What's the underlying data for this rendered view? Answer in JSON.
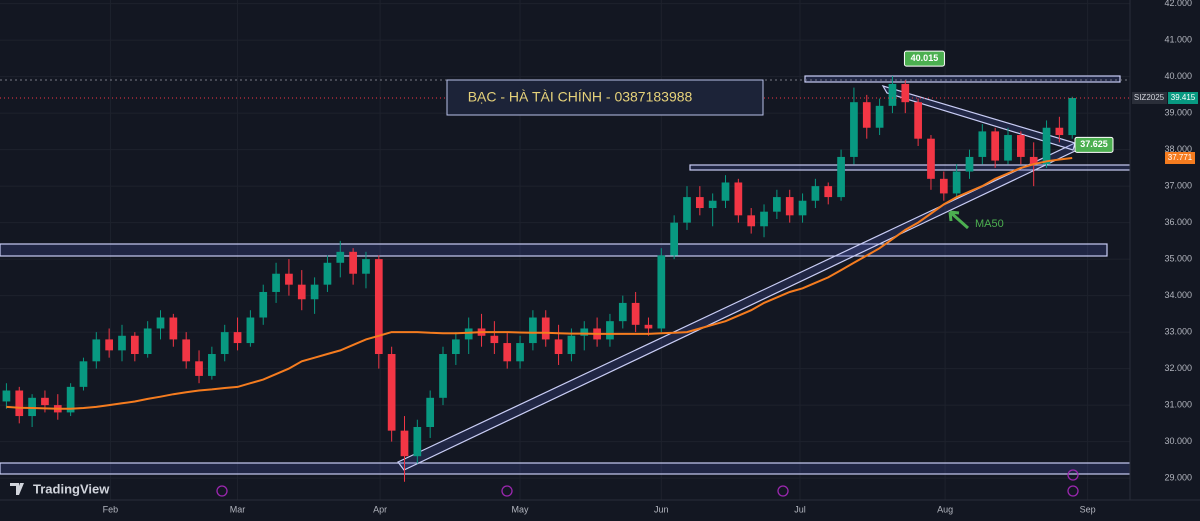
{
  "chart_data": {
    "type": "candlestick",
    "watermark_text": "BẠC - HÀ TÀI CHÍNH - 0387183988",
    "logo_text": "TradingView",
    "xlim": [
      -0.5,
      87.5
    ],
    "xticks": [
      {
        "value": 8.1,
        "label": "Feb"
      },
      {
        "value": 18,
        "label": "Mar"
      },
      {
        "value": 29.1,
        "label": "Apr"
      },
      {
        "value": 40,
        "label": "May"
      },
      {
        "value": 51,
        "label": "Jun"
      },
      {
        "value": 61.8,
        "label": "Jul"
      },
      {
        "value": 73.1,
        "label": "Aug"
      },
      {
        "value": 84.2,
        "label": "Sep"
      }
    ],
    "ylim": [
      28.4,
      42.1
    ],
    "yticks": [
      {
        "value": 29,
        "label": "29.000"
      },
      {
        "value": 30,
        "label": "30.000"
      },
      {
        "value": 31,
        "label": "31.000"
      },
      {
        "value": 32,
        "label": "32.000"
      },
      {
        "value": 33,
        "label": "33.000"
      },
      {
        "value": 34,
        "label": "34.000"
      },
      {
        "value": 35,
        "label": "35.000"
      },
      {
        "value": 36,
        "label": "36.000"
      },
      {
        "value": 37,
        "label": "37.000"
      },
      {
        "value": 38,
        "label": "38.000"
      },
      {
        "value": 39,
        "label": "39.000"
      },
      {
        "value": 40,
        "label": "40.000"
      },
      {
        "value": 41,
        "label": "41.000"
      },
      {
        "value": 42,
        "label": "42.000"
      }
    ],
    "grid": true,
    "annotations": [
      37.625
    ],
    "series": [
      {
        "name": "SIZ2025",
        "up_color": "#089981",
        "down_color": "#f23645",
        "open": [
          31.1,
          31.4,
          30.7,
          31.2,
          31.0,
          30.8,
          31.5,
          32.2,
          32.8,
          32.5,
          32.9,
          32.4,
          33.1,
          33.4,
          32.8,
          32.2,
          31.8,
          32.4,
          33.0,
          32.7,
          33.4,
          34.1,
          34.6,
          34.3,
          33.9,
          34.3,
          34.9,
          35.2,
          34.6,
          35.0,
          32.4,
          30.3,
          29.6,
          30.4,
          31.2,
          32.4,
          32.8,
          33.1,
          32.9,
          32.7,
          32.2,
          32.7,
          33.4,
          32.8,
          32.4,
          32.9,
          33.1,
          32.8,
          33.3,
          33.8,
          33.2,
          33.1,
          35.1,
          36.0,
          36.7,
          36.4,
          36.6,
          37.1,
          36.2,
          35.9,
          36.3,
          36.7,
          36.2,
          36.6,
          37.0,
          36.7,
          37.8,
          39.3,
          38.6,
          39.2,
          39.8,
          39.3,
          38.3,
          37.2,
          36.8,
          37.4,
          37.8,
          38.5,
          37.7,
          38.4,
          37.8,
          37.6,
          38.6,
          38.4
        ],
        "high": [
          31.6,
          31.5,
          31.3,
          31.4,
          31.3,
          31.6,
          32.3,
          33.0,
          33.1,
          33.2,
          33.0,
          33.3,
          33.6,
          33.5,
          33.0,
          32.5,
          32.6,
          33.2,
          33.4,
          33.6,
          34.3,
          34.9,
          35.0,
          34.7,
          34.5,
          35.1,
          35.5,
          35.3,
          35.2,
          35.1,
          32.6,
          30.7,
          30.6,
          31.4,
          32.6,
          33.0,
          33.4,
          33.5,
          33.3,
          33.0,
          32.9,
          33.6,
          33.6,
          33.2,
          33.1,
          33.3,
          33.4,
          33.5,
          34.0,
          34.1,
          33.4,
          35.3,
          36.2,
          37.0,
          37.0,
          36.8,
          37.3,
          37.2,
          36.4,
          36.5,
          36.9,
          36.9,
          36.8,
          37.2,
          37.1,
          38.0,
          39.7,
          39.5,
          39.4,
          40.015,
          39.9,
          39.4,
          38.4,
          37.4,
          37.6,
          38.0,
          38.7,
          38.6,
          38.6,
          38.5,
          38.2,
          38.8,
          38.9,
          39.45
        ],
        "low": [
          30.9,
          30.5,
          30.4,
          30.8,
          30.6,
          30.7,
          31.4,
          32.0,
          32.3,
          32.2,
          32.2,
          32.3,
          32.8,
          32.6,
          32.0,
          31.6,
          31.7,
          32.2,
          32.5,
          32.6,
          33.2,
          33.8,
          34.0,
          33.6,
          33.5,
          34.1,
          34.5,
          34.3,
          34.2,
          32.0,
          30.0,
          28.9,
          29.4,
          30.1,
          31.0,
          32.1,
          32.4,
          32.6,
          32.4,
          32.0,
          32.0,
          32.5,
          32.6,
          32.1,
          32.2,
          32.5,
          32.6,
          32.6,
          33.1,
          33.0,
          32.9,
          33.0,
          35.0,
          35.8,
          36.2,
          35.9,
          36.4,
          36.0,
          35.7,
          35.6,
          36.1,
          36.0,
          36.0,
          36.4,
          36.5,
          36.6,
          37.6,
          38.3,
          38.4,
          39.0,
          39.0,
          38.1,
          36.9,
          36.6,
          36.7,
          37.2,
          37.6,
          37.5,
          37.6,
          37.6,
          37.0,
          37.5,
          38.2,
          38.3
        ],
        "close": [
          31.4,
          30.7,
          31.2,
          31.0,
          30.8,
          31.5,
          32.2,
          32.8,
          32.5,
          32.9,
          32.4,
          33.1,
          33.4,
          32.8,
          32.2,
          31.8,
          32.4,
          33.0,
          32.7,
          33.4,
          34.1,
          34.6,
          34.3,
          33.9,
          34.3,
          34.9,
          35.2,
          34.6,
          35.0,
          32.4,
          30.3,
          29.6,
          30.4,
          31.2,
          32.4,
          32.8,
          33.1,
          32.9,
          32.7,
          32.2,
          32.7,
          33.4,
          32.8,
          32.4,
          32.9,
          33.1,
          32.8,
          33.3,
          33.8,
          33.2,
          33.1,
          35.1,
          36.0,
          36.7,
          36.4,
          36.6,
          37.1,
          36.2,
          35.9,
          36.3,
          36.7,
          36.2,
          36.6,
          37.0,
          36.7,
          37.8,
          39.3,
          38.6,
          39.2,
          39.8,
          39.3,
          38.3,
          37.2,
          36.8,
          37.4,
          37.8,
          38.5,
          37.7,
          38.4,
          37.8,
          37.6,
          38.6,
          38.4,
          39.415
        ]
      },
      {
        "name": "MA50",
        "color": "#f57c1f",
        "values": [
          30.95,
          30.93,
          30.92,
          30.91,
          30.9,
          30.9,
          30.92,
          30.95,
          31.0,
          31.05,
          31.1,
          31.17,
          31.23,
          31.3,
          31.35,
          31.4,
          31.43,
          31.47,
          31.5,
          31.6,
          31.7,
          31.85,
          32.0,
          32.2,
          32.3,
          32.4,
          32.5,
          32.65,
          32.8,
          32.9,
          33.0,
          33.0,
          33.0,
          32.98,
          32.97,
          32.97,
          32.98,
          33.0,
          33.0,
          33.0,
          32.99,
          32.98,
          32.98,
          32.97,
          32.96,
          32.96,
          32.95,
          32.95,
          32.95,
          32.95,
          32.95,
          32.97,
          32.98,
          33.0,
          33.1,
          33.2,
          33.3,
          33.45,
          33.6,
          33.8,
          33.95,
          34.1,
          34.2,
          34.35,
          34.5,
          34.7,
          34.9,
          35.1,
          35.3,
          35.55,
          35.8,
          36.0,
          36.25,
          36.5,
          36.7,
          36.85,
          37.0,
          37.2,
          37.35,
          37.5,
          37.6,
          37.68,
          37.73,
          37.771
        ]
      }
    ]
  }
}
